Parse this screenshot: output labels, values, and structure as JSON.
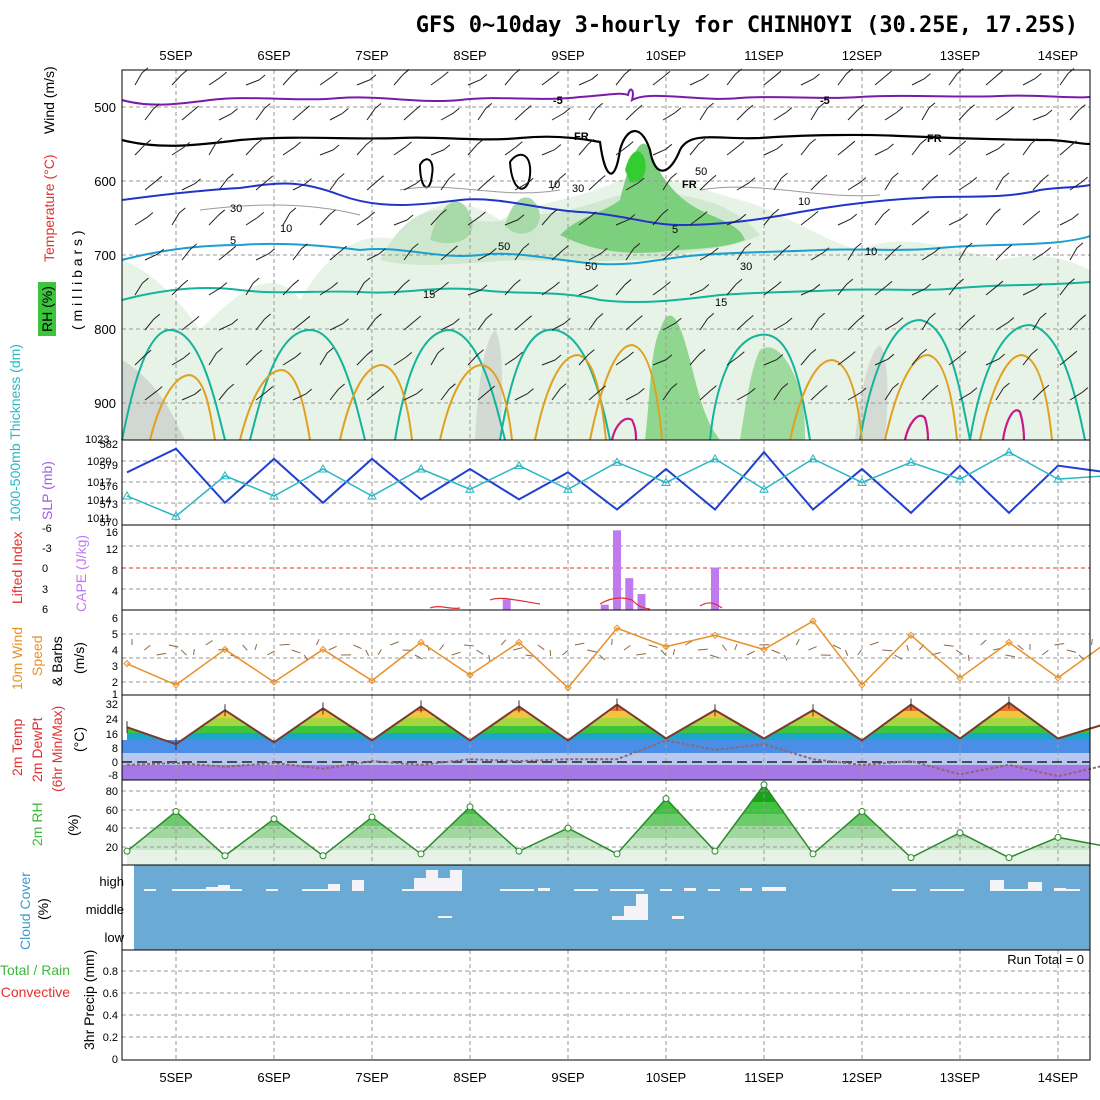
{
  "title": "GFS 0~10day 3-hourly for CHINHOYI (30.25E, 17.25S)",
  "days": [
    "5SEP",
    "6SEP",
    "7SEP",
    "8SEP",
    "9SEP",
    "10SEP",
    "11SEP",
    "12SEP",
    "13SEP",
    "14SEP"
  ],
  "colors": {
    "rh_green": "#3cc43c",
    "temp_blue": "#2233cc",
    "temp_cyan": "#1a9fd0",
    "temp_teal": "#14b39b",
    "temp_orange": "#e0a020",
    "temp_red": "#c81a8a",
    "freeze": "#000000",
    "minus5": "#7a1aa8",
    "slp": "#1e3fd0",
    "thickness": "#2ab6c4",
    "cape": "#c07af0",
    "lifted": "#e03030",
    "wind10": "#e8902a",
    "cloud_bg": "#6aaad4",
    "rh2m": "#3cb83c"
  },
  "panels": {
    "upper": {
      "label_rh": "RH (%)",
      "label_temp": "Temperature (°C)",
      "label_wind": "Wind (m/s)",
      "label_mb": "( m i l l i b a r s )",
      "ticks": [
        "500",
        "600",
        "700",
        "800",
        "900"
      ],
      "contour_labels": [
        "-5",
        "-5",
        "FR",
        "FR",
        "FR",
        "5",
        "5",
        "10",
        "15",
        "15",
        "30",
        "10",
        "10",
        "30",
        "50",
        "50",
        "10",
        "50",
        "30"
      ]
    },
    "slp": {
      "label_thk": "1000-500mb Thickness (dm)",
      "label_slp": "SLP (mb)",
      "left_ticks": [
        "582",
        "579",
        "576",
        "573",
        "570"
      ],
      "right_ticks": [
        "1023",
        "1020",
        "1017",
        "1014",
        "1011"
      ]
    },
    "cape": {
      "label_li": "Lifted Index",
      "label_cape": "CAPE (J/kg)",
      "left_ticks": [
        "-6",
        "-3",
        "0",
        "3",
        "6"
      ],
      "right_ticks": [
        "16",
        "12",
        "8",
        "4"
      ]
    },
    "wind10": {
      "label_a": "10m Wind",
      "label_b": "Speed",
      "label_c": "& Barbs",
      "label_unit": "(m/s)",
      "ticks": [
        "6",
        "5",
        "4",
        "3",
        "2",
        "1"
      ]
    },
    "temp2m": {
      "label_a": "2m Temp",
      "label_b": "2m DewPt",
      "label_c": "(6hr Min/Max)",
      "label_unit": "(°C)",
      "ticks": [
        "32",
        "24",
        "16",
        "8",
        "0",
        "-8"
      ]
    },
    "rh2m": {
      "label": "2m RH",
      "label_unit": "(%)",
      "ticks": [
        "80",
        "60",
        "40",
        "20"
      ]
    },
    "cloud": {
      "label": "Cloud Cover",
      "label_unit": "(%)",
      "levels": [
        "high",
        "middle",
        "low"
      ]
    },
    "precip": {
      "label_a": "Total / Rain",
      "label_b": "Convective",
      "label_c": "3hr Precip (mm)",
      "ticks": [
        "0.8",
        "0.6",
        "0.4",
        "0.2",
        "0"
      ],
      "run_total": "Run Total = 0"
    }
  },
  "chart_data": [
    {
      "type": "line",
      "title": "1000-500mb Thickness (dm) / SLP (mb)",
      "x": [
        "4SEP 12Z",
        "5SEP 00Z",
        "5SEP 12Z",
        "6SEP 00Z",
        "6SEP 12Z",
        "7SEP 00Z",
        "7SEP 12Z",
        "8SEP 00Z",
        "8SEP 12Z",
        "9SEP 00Z",
        "9SEP 12Z",
        "10SEP 00Z",
        "10SEP 12Z",
        "11SEP 00Z",
        "11SEP 12Z",
        "12SEP 00Z",
        "12SEP 12Z",
        "13SEP 00Z",
        "13SEP 12Z",
        "14SEP 00Z",
        "14SEP 12Z"
      ],
      "series": [
        {
          "name": "SLP (mb)",
          "values": [
            1018.5,
            1022,
            1014,
            1020.5,
            1014,
            1020.5,
            1014.5,
            1019,
            1014.5,
            1018.5,
            1013,
            1019,
            1013,
            1021.5,
            1013,
            1019,
            1012.5,
            1019.5,
            1012.5,
            1019.5,
            1018.5
          ]
        },
        {
          "name": "1000-500mb Thickness (dm)",
          "values": [
            574,
            571,
            577,
            574,
            578,
            574,
            578,
            575,
            578.5,
            575,
            579,
            576,
            579.5,
            575,
            579.5,
            576,
            579,
            576.5,
            580.5,
            576.5,
            577
          ]
        }
      ],
      "ylim_slp": [
        1011,
        1023
      ],
      "ylim_thickness": [
        570,
        582
      ]
    },
    {
      "type": "bar",
      "title": "CAPE (J/kg)",
      "categories": [
        "8SEP 09Z",
        "9SEP 09Z",
        "9SEP 12Z",
        "9SEP 15Z",
        "9SEP 18Z",
        "10SEP 12Z"
      ],
      "values": [
        2,
        1,
        15,
        6,
        3,
        8
      ],
      "ylim": [
        0,
        16
      ]
    },
    {
      "type": "line",
      "title": "10m Wind Speed (m/s)",
      "x": [
        "4SEP 12Z",
        "5SEP 00Z",
        "5SEP 12Z",
        "6SEP 00Z",
        "6SEP 12Z",
        "7SEP 00Z",
        "7SEP 12Z",
        "8SEP 00Z",
        "8SEP 12Z",
        "9SEP 00Z",
        "9SEP 12Z",
        "10SEP 00Z",
        "10SEP 12Z",
        "11SEP 00Z",
        "11SEP 12Z",
        "12SEP 00Z",
        "12SEP 12Z",
        "13SEP 00Z",
        "13SEP 12Z",
        "14SEP 00Z",
        "14SEP 12Z"
      ],
      "series": [
        {
          "name": "Speed",
          "values": [
            3,
            1.5,
            4,
            1.7,
            4,
            1.8,
            4.5,
            2.2,
            4.5,
            1.3,
            5.5,
            4.2,
            5,
            4,
            6,
            1.5,
            5,
            2,
            4.5,
            2,
            4.5
          ]
        }
      ],
      "ylim": [
        1,
        6.5
      ]
    },
    {
      "type": "area",
      "title": "2m Temp / 2m DewPt (°C)",
      "x": [
        "4SEP 12Z",
        "5SEP 00Z",
        "5SEP 12Z",
        "6SEP 00Z",
        "6SEP 12Z",
        "7SEP 00Z",
        "7SEP 12Z",
        "8SEP 00Z",
        "8SEP 12Z",
        "9SEP 00Z",
        "9SEP 12Z",
        "10SEP 00Z",
        "10SEP 12Z",
        "11SEP 00Z",
        "11SEP 12Z",
        "12SEP 00Z",
        "12SEP 12Z",
        "13SEP 00Z",
        "13SEP 12Z",
        "14SEP 00Z",
        "14SEP 12Z"
      ],
      "series": [
        {
          "name": "2m Temp",
          "values": [
            20,
            11,
            29,
            12,
            30,
            13,
            31,
            13,
            31,
            13,
            32,
            14,
            29,
            14,
            29,
            13,
            32,
            14,
            33,
            14,
            22
          ]
        },
        {
          "name": "2m DewPt",
          "values": [
            0,
            1,
            -1,
            1,
            -2,
            2,
            0,
            3,
            2,
            3,
            3,
            13,
            8,
            11,
            3,
            0,
            2,
            -5,
            0,
            -6,
            0
          ]
        }
      ],
      "ylim": [
        -8,
        36
      ]
    },
    {
      "type": "area",
      "title": "2m RH (%)",
      "x": [
        "4SEP 12Z",
        "5SEP 00Z",
        "5SEP 12Z",
        "6SEP 00Z",
        "6SEP 12Z",
        "7SEP 00Z",
        "7SEP 12Z",
        "8SEP 00Z",
        "8SEP 12Z",
        "9SEP 00Z",
        "9SEP 12Z",
        "10SEP 00Z",
        "10SEP 12Z",
        "11SEP 00Z",
        "11SEP 12Z",
        "12SEP 00Z",
        "12SEP 12Z",
        "13SEP 00Z",
        "13SEP 12Z",
        "14SEP 00Z",
        "14SEP 12Z"
      ],
      "series": [
        {
          "name": "2m RH",
          "values": [
            15,
            58,
            10,
            50,
            10,
            52,
            12,
            63,
            15,
            40,
            12,
            72,
            15,
            87,
            12,
            58,
            8,
            35,
            8,
            30,
            20
          ]
        }
      ],
      "ylim": [
        0,
        90
      ]
    },
    {
      "type": "bar",
      "title": "3hr Precip (mm)",
      "categories": [
        "4SEP",
        "14SEP"
      ],
      "values": [
        0,
        0
      ],
      "ylim": [
        0,
        0.9
      ]
    }
  ]
}
